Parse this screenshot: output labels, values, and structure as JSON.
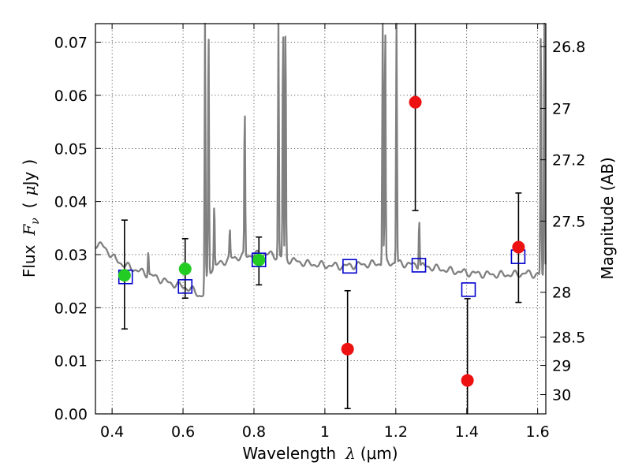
{
  "chart_data": {
    "type": "scatter",
    "xlabel": "Wavelength",
    "xlabel_symbol": "λ",
    "xlabel_unit": "(μm)",
    "ylabel": "Flux",
    "ylabel_symbol": "F",
    "ylabel_symbol_sub": "ν",
    "ylabel_unit_open": "(",
    "ylabel_unit_mu": "μ",
    "ylabel_unit_rest": "Jy",
    "ylabel_unit_close": ")",
    "y2label": "Magnitude (AB)",
    "xlim": [
      0.353,
      1.623
    ],
    "ylim": [
      0.0,
      0.0735
    ],
    "grid": true,
    "x_ticks": [
      {
        "value": 0.4,
        "label": "0.4"
      },
      {
        "value": 0.6,
        "label": "0.6"
      },
      {
        "value": 0.8,
        "label": "0.8"
      },
      {
        "value": 1.0,
        "label": "1"
      },
      {
        "value": 1.2,
        "label": "1.2"
      },
      {
        "value": 1.4,
        "label": "1.4"
      },
      {
        "value": 1.6,
        "label": "1.6"
      }
    ],
    "y_ticks": [
      {
        "value": 0.0,
        "label": "0.00"
      },
      {
        "value": 0.01,
        "label": "0.01"
      },
      {
        "value": 0.02,
        "label": "0.02"
      },
      {
        "value": 0.03,
        "label": "0.03"
      },
      {
        "value": 0.04,
        "label": "0.04"
      },
      {
        "value": 0.05,
        "label": "0.05"
      },
      {
        "value": 0.06,
        "label": "0.06"
      },
      {
        "value": 0.07,
        "label": "0.07"
      }
    ],
    "y2_ticks": [
      {
        "mag": 26.8,
        "label": "26.8"
      },
      {
        "mag": 27.0,
        "label": "27"
      },
      {
        "mag": 27.2,
        "label": "27.2"
      },
      {
        "mag": 27.5,
        "label": "27.5"
      },
      {
        "mag": 28.0,
        "label": "28"
      },
      {
        "mag": 28.5,
        "label": "28.5"
      },
      {
        "mag": 29.0,
        "label": "29"
      },
      {
        "mag": 30.0,
        "label": "30"
      }
    ],
    "series": [
      {
        "kind": "spectrum",
        "color": "#808080",
        "continuum": [
          [
            0.353,
            0.032
          ],
          [
            0.37,
            0.0318
          ],
          [
            0.39,
            0.0305
          ],
          [
            0.41,
            0.029
          ],
          [
            0.43,
            0.0282
          ],
          [
            0.45,
            0.0276
          ],
          [
            0.48,
            0.0268
          ],
          [
            0.52,
            0.0258
          ],
          [
            0.56,
            0.0247
          ],
          [
            0.6,
            0.024
          ],
          [
            0.63,
            0.0232
          ],
          [
            0.65,
            0.0222
          ],
          [
            0.66,
            0.0224
          ],
          [
            0.67,
            0.0268
          ],
          [
            0.7,
            0.0282
          ],
          [
            0.73,
            0.0292
          ],
          [
            0.76,
            0.0296
          ],
          [
            0.8,
            0.03
          ],
          [
            0.84,
            0.0301
          ],
          [
            0.87,
            0.0296
          ],
          [
            0.9,
            0.029
          ],
          [
            0.95,
            0.0283
          ],
          [
            1.0,
            0.028
          ],
          [
            1.05,
            0.0278
          ],
          [
            1.1,
            0.0281
          ],
          [
            1.15,
            0.0283
          ],
          [
            1.18,
            0.0285
          ],
          [
            1.22,
            0.0283
          ],
          [
            1.26,
            0.028
          ],
          [
            1.3,
            0.0276
          ],
          [
            1.35,
            0.027
          ],
          [
            1.4,
            0.0266
          ],
          [
            1.45,
            0.0263
          ],
          [
            1.5,
            0.0262
          ],
          [
            1.54,
            0.0263
          ],
          [
            1.57,
            0.0265
          ],
          [
            1.6,
            0.0262
          ],
          [
            1.623,
            0.0255
          ]
        ],
        "lines": [
          [
            0.502,
            0.031
          ],
          [
            0.662,
            0.074
          ],
          [
            0.672,
            0.074
          ],
          [
            0.688,
            0.0395
          ],
          [
            0.732,
            0.0345
          ],
          [
            0.774,
            0.0578
          ],
          [
            0.869,
            0.074
          ],
          [
            0.882,
            0.074
          ],
          [
            0.889,
            0.074
          ],
          [
            1.163,
            0.074
          ],
          [
            1.17,
            0.074
          ],
          [
            1.202,
            0.074
          ],
          [
            1.266,
            0.0372
          ],
          [
            1.609,
            0.074
          ],
          [
            1.619,
            0.074
          ]
        ]
      },
      {
        "kind": "model_fluxes",
        "marker": "open-square",
        "color": "#0000cc",
        "points": [
          {
            "x": 0.438,
            "y": 0.0258
          },
          {
            "x": 0.606,
            "y": 0.024
          },
          {
            "x": 0.814,
            "y": 0.029
          },
          {
            "x": 1.07,
            "y": 0.0278
          },
          {
            "x": 1.265,
            "y": 0.028
          },
          {
            "x": 1.405,
            "y": 0.0234
          },
          {
            "x": 1.545,
            "y": 0.0296
          }
        ]
      },
      {
        "kind": "detections",
        "marker": "filled-circle",
        "color": "#22cc22",
        "points": [
          {
            "x": 0.435,
            "y": 0.0261,
            "yerr": [
              0.016,
              0.0365
            ]
          },
          {
            "x": 0.606,
            "y": 0.0273,
            "yerr": [
              0.0218,
              0.033
            ]
          },
          {
            "x": 0.814,
            "y": 0.029,
            "yerr": [
              0.0243,
              0.0333
            ]
          }
        ]
      },
      {
        "kind": "measurements",
        "marker": "filled-circle",
        "color": "#ee1111",
        "points": [
          {
            "x": 1.064,
            "y": 0.0122,
            "yerr": [
              0.001,
              0.0232
            ]
          },
          {
            "x": 1.255,
            "y": 0.0587,
            "yerr": [
              0.0383,
              0.074
            ]
          },
          {
            "x": 1.402,
            "y": 0.0063,
            "yerr": [
              0.0,
              0.0217
            ]
          },
          {
            "x": 1.546,
            "y": 0.0314,
            "yerr": [
              0.021,
              0.0416
            ]
          }
        ]
      }
    ]
  }
}
